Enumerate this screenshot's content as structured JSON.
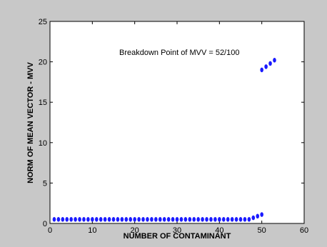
{
  "chart_data": {
    "type": "scatter",
    "title": "",
    "xlabel": "NUMBER OF CONTAMINANT",
    "ylabel": "NORM OF MEAN VECTOR - MVV",
    "xlim": [
      0,
      60
    ],
    "ylim": [
      0,
      25
    ],
    "xticks": [
      "0",
      "10",
      "20",
      "30",
      "40",
      "50",
      "60"
    ],
    "yticks": [
      "0",
      "5",
      "10",
      "15",
      "20",
      "25"
    ],
    "grid": false,
    "annotation": "Breakdown Point of MVV = 52/100",
    "marker_color": "#1a1aff",
    "series": [
      {
        "x": [
          1,
          2,
          3,
          4,
          5,
          6,
          7,
          8,
          9,
          10,
          11,
          12,
          13,
          14,
          15,
          16,
          17,
          18,
          19,
          20,
          21,
          22,
          23,
          24,
          25,
          26,
          27,
          28,
          29,
          30,
          31,
          32,
          33,
          34,
          35,
          36,
          37,
          38,
          39,
          40,
          41,
          42,
          43,
          44,
          45,
          46,
          47,
          48,
          49,
          50,
          50,
          51,
          52,
          53
        ],
        "y": [
          0.5,
          0.5,
          0.5,
          0.5,
          0.5,
          0.5,
          0.5,
          0.5,
          0.5,
          0.5,
          0.5,
          0.5,
          0.5,
          0.5,
          0.5,
          0.5,
          0.5,
          0.5,
          0.5,
          0.5,
          0.5,
          0.5,
          0.5,
          0.5,
          0.5,
          0.5,
          0.5,
          0.5,
          0.5,
          0.5,
          0.5,
          0.5,
          0.5,
          0.5,
          0.5,
          0.5,
          0.5,
          0.5,
          0.5,
          0.5,
          0.5,
          0.5,
          0.5,
          0.5,
          0.5,
          0.5,
          0.5,
          0.7,
          0.9,
          1.1,
          19.0,
          19.4,
          19.8,
          20.2
        ]
      }
    ]
  }
}
